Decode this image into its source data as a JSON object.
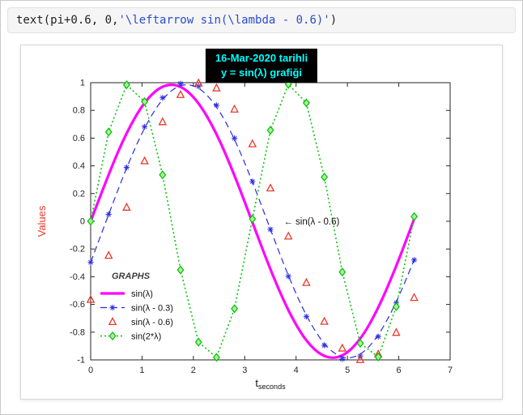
{
  "code_cell": {
    "prefix": "text(pi+0.6, 0,",
    "string": "'\\leftarrow sin(\\lambda - 0.6)'",
    "suffix": ")",
    "string_color": "#2b4ccd"
  },
  "chart_data": {
    "type": "line",
    "title_lines": [
      "16-Mar-2020 tarihli",
      "y = sin(λ) grafiği"
    ],
    "title_style": {
      "bg": "#000000",
      "color": "#00ffff"
    },
    "xlabel_main": "t",
    "xlabel_sub": "seconds",
    "ylabel": "Values",
    "ylabel_color": "#e8392b",
    "xlim": [
      0,
      7
    ],
    "ylim": [
      -1,
      1
    ],
    "xticks": [
      0,
      1,
      2,
      3,
      4,
      5,
      6,
      7
    ],
    "yticks": [
      -1,
      -0.8,
      -0.6,
      -0.4,
      -0.2,
      0,
      0.2,
      0.4,
      0.6,
      0.8,
      1
    ],
    "grid": false,
    "legend": {
      "title": "GRAPHS",
      "position": "lower-left"
    },
    "annotation": {
      "text": "← sin(λ - 0.6)",
      "x": 3.7416,
      "y": 0
    },
    "x": [
      0,
      0.35,
      0.7,
      1.05,
      1.4,
      1.75,
      2.1,
      2.45,
      2.8,
      3.15,
      3.5,
      3.85,
      4.2,
      4.55,
      4.9,
      5.25,
      5.6,
      5.95,
      6.3
    ],
    "series": [
      {
        "name": "sin(λ)",
        "color": "#ff00ff",
        "line": "solid",
        "width": 3.2,
        "marker": "none",
        "values": [
          0,
          0.343,
          0.644,
          0.867,
          0.985,
          0.984,
          0.863,
          0.638,
          0.335,
          -0.008,
          -0.351,
          -0.651,
          -0.872,
          -0.986,
          -0.982,
          -0.859,
          -0.631,
          -0.327,
          0.017
        ]
      },
      {
        "name": "sin(λ - 0.3)",
        "color": "#2b2bdf",
        "line": "dashed",
        "width": 1.2,
        "marker": "asterisk",
        "values": [
          -0.296,
          0.05,
          0.389,
          0.682,
          0.891,
          0.993,
          0.974,
          0.837,
          0.599,
          0.287,
          -0.058,
          -0.397,
          -0.688,
          -0.895,
          -0.994,
          -0.972,
          -0.832,
          -0.589,
          -0.279
        ]
      },
      {
        "name": "sin(λ - 0.6)",
        "color": "#e8392b",
        "line": "none",
        "width": 1.2,
        "marker": "triangle",
        "values": [
          -0.565,
          -0.247,
          0.1,
          0.435,
          0.717,
          0.913,
          0.997,
          0.961,
          0.808,
          0.558,
          0.239,
          -0.108,
          -0.443,
          -0.723,
          -0.916,
          -0.999,
          -0.959,
          -0.803,
          -0.551
        ]
      },
      {
        "name": "sin(2*λ)",
        "color": "#00c000",
        "line": "dotted",
        "width": 1.5,
        "marker": "diamond",
        "marker_fill": "#a9ef9e",
        "values": [
          0,
          0.644,
          0.985,
          0.863,
          0.335,
          -0.351,
          -0.872,
          -0.982,
          -0.631,
          0.017,
          0.657,
          0.988,
          0.854,
          0.319,
          -0.366,
          -0.88,
          -0.979,
          -0.616,
          0.034
        ]
      }
    ]
  }
}
